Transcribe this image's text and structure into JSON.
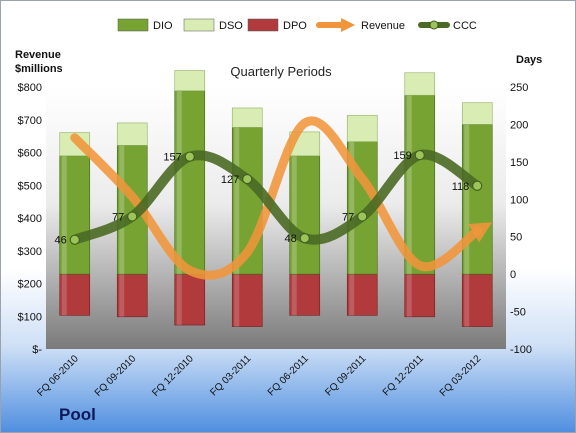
{
  "chart_data": {
    "type": "bar",
    "title": "Quarterly Periods",
    "subtitle": "",
    "company": "Pool",
    "ylabel_left": "Revenue\n$millions",
    "ylabel_right": "Days",
    "categories": [
      "FQ 06-2010",
      "FQ 09-2010",
      "FQ 12-2010",
      "FQ 03-2011",
      "FQ 06-2011",
      "FQ 09-2011",
      "FQ 12-2011",
      "FQ 03-2012"
    ],
    "left_axis": {
      "min": 0,
      "max": 800,
      "step": 100,
      "tick_labels": [
        "$-",
        "$100",
        "$200",
        "$300",
        "$400",
        "$500",
        "$600",
        "$700",
        "$800"
      ]
    },
    "right_axis": {
      "min": -100,
      "max": 250,
      "step": 50,
      "tick_labels": [
        "-100",
        "-50",
        "0",
        "50",
        "100",
        "150",
        "200",
        "250"
      ]
    },
    "series": [
      {
        "name": "DIO",
        "kind": "stacked-bar",
        "axis": "right",
        "color": "#76a332",
        "values": [
          158,
          172,
          245,
          196,
          158,
          177,
          239,
          200
        ]
      },
      {
        "name": "DSO",
        "kind": "stacked-bar",
        "axis": "right",
        "color": "#d9ecb4",
        "values": [
          31,
          30,
          27,
          26,
          32,
          35,
          30,
          29
        ]
      },
      {
        "name": "DPO",
        "kind": "negative-bar",
        "axis": "right",
        "color": "#b03a3c",
        "values": [
          -55,
          -57,
          -68,
          -70,
          -55,
          -55,
          -57,
          -70
        ]
      },
      {
        "name": "Revenue",
        "kind": "line",
        "axis": "left",
        "color": "#f0953a",
        "values": [
          645,
          465,
          240,
          295,
          690,
          520,
          255,
          360
        ]
      },
      {
        "name": "CCC",
        "kind": "line",
        "axis": "right",
        "color": "#4a6a25",
        "values": [
          46,
          77,
          157,
          127,
          48,
          77,
          159,
          118
        ]
      }
    ],
    "data_labels": [
      "46",
      "77",
      "157",
      "127",
      "48",
      "77",
      "159",
      "118"
    ],
    "legend_position": "top",
    "grid": false
  }
}
